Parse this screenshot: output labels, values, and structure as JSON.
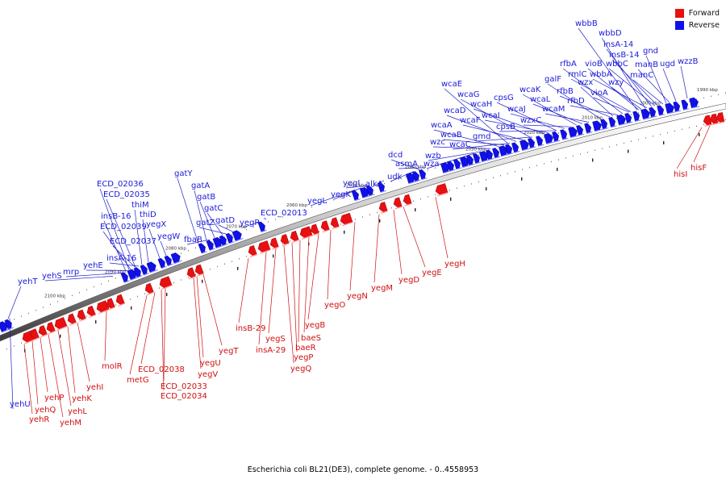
{
  "caption": "Escherichia coli BL21(DE3), complete genome. - 0..4558953",
  "legend": [
    {
      "label": "Forward",
      "color": "#e81010"
    },
    {
      "label": "Reverse",
      "color": "#1010e8"
    }
  ],
  "colors": {
    "forward": "#e81010",
    "reverse": "#1010e8",
    "forward_label": "#d01010",
    "reverse_label": "#1a1ad9",
    "backbone": "#555555"
  },
  "scale_ticks": [
    "1990 kbp",
    "2000 kbp",
    "2010 kbp",
    "2020 kbp",
    "2030 kbp",
    "2040 kbp",
    "2050 kbp",
    "2060 kbp",
    "2070 kbp",
    "2080 kbp",
    "2090 kbp",
    "2100 kbp"
  ],
  "reverse_genes": [
    "wbbB",
    "wbbD",
    "insA-14",
    "insB-14",
    "gnd",
    "wzzB",
    "ugd",
    "manB",
    "manC",
    "wbbC",
    "wbbA",
    "vioB",
    "rmlC",
    "rfbA",
    "wzy",
    "vioA",
    "wzx",
    "galF",
    "rfbB",
    "rfbD",
    "wcaK",
    "wcaL",
    "wcaM",
    "wcaJ",
    "wzxC",
    "cpsG",
    "wcaH",
    "wcaI",
    "cpsB",
    "wcaG",
    "wcaF",
    "gmd",
    "wcaD",
    "wcaE",
    "wcaA",
    "wcaB",
    "wcaC",
    "wzc",
    "wzb",
    "wza",
    "dcd",
    "asmA",
    "udk",
    "alkA",
    "yegI",
    "yegK",
    "yegL",
    "ECD_02013",
    "yegR",
    "gatY",
    "gatA",
    "gatB",
    "gatC",
    "gatD",
    "gatZ",
    "fbaB",
    "ECD_02036",
    "ECD_02035",
    "thiM",
    "thiD",
    "insB-16",
    "yegX",
    "ECD_02039",
    "yegW",
    "ECD_02037",
    "insA-16",
    "yehE",
    "mrp",
    "yehS",
    "yehT",
    "yehU"
  ],
  "forward_genes": [
    "hisF",
    "hisI",
    "yegH",
    "yegE",
    "yegD",
    "yegM",
    "yegN",
    "yegO",
    "yegB",
    "baeS",
    "baeR",
    "yegP",
    "yegQ",
    "yegS",
    "insA-29",
    "insB-29",
    "yegT",
    "yegU",
    "yegV",
    "ECD_02033",
    "ECD_02034",
    "ECD_02038",
    "metG",
    "molR",
    "yehI",
    "yehK",
    "yehL",
    "yehM",
    "yehP",
    "yehQ",
    "yehR"
  ]
}
